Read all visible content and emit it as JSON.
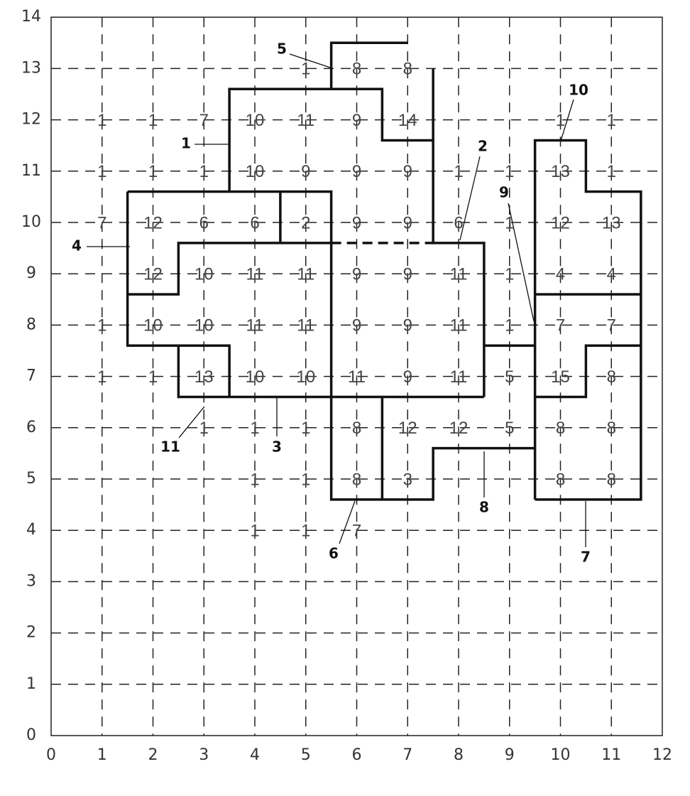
{
  "axes": {
    "x_ticks": [
      0,
      1,
      2,
      3,
      4,
      5,
      6,
      7,
      8,
      9,
      10,
      11,
      12
    ],
    "y_ticks": [
      0,
      1,
      2,
      3,
      4,
      5,
      6,
      7,
      8,
      9,
      10,
      11,
      12,
      13,
      14
    ]
  },
  "grid_values": [
    [
      null,
      null,
      null,
      null,
      null,
      1,
      8,
      8,
      null,
      null,
      null,
      null
    ],
    [
      null,
      1,
      1,
      7,
      10,
      11,
      9,
      14,
      null,
      null,
      1,
      1
    ],
    [
      null,
      1,
      1,
      1,
      10,
      9,
      9,
      9,
      1,
      1,
      13,
      1
    ],
    [
      null,
      7,
      12,
      6,
      6,
      2,
      9,
      9,
      6,
      1,
      12,
      13
    ],
    [
      null,
      null,
      12,
      10,
      11,
      11,
      9,
      9,
      11,
      1,
      4,
      4
    ],
    [
      null,
      1,
      10,
      10,
      11,
      11,
      9,
      9,
      11,
      1,
      7,
      7
    ],
    [
      null,
      1,
      1,
      13,
      10,
      10,
      11,
      9,
      11,
      5,
      15,
      8
    ],
    [
      null,
      null,
      null,
      1,
      1,
      1,
      8,
      12,
      12,
      5,
      8,
      8
    ],
    [
      null,
      null,
      null,
      null,
      1,
      1,
      8,
      3,
      null,
      null,
      8,
      8
    ],
    [
      null,
      null,
      null,
      null,
      1,
      1,
      7,
      null,
      null,
      null,
      null,
      null
    ]
  ],
  "boundary_labels": [
    5,
    1,
    10,
    2,
    4,
    9,
    11,
    3,
    8,
    6,
    7
  ]
}
